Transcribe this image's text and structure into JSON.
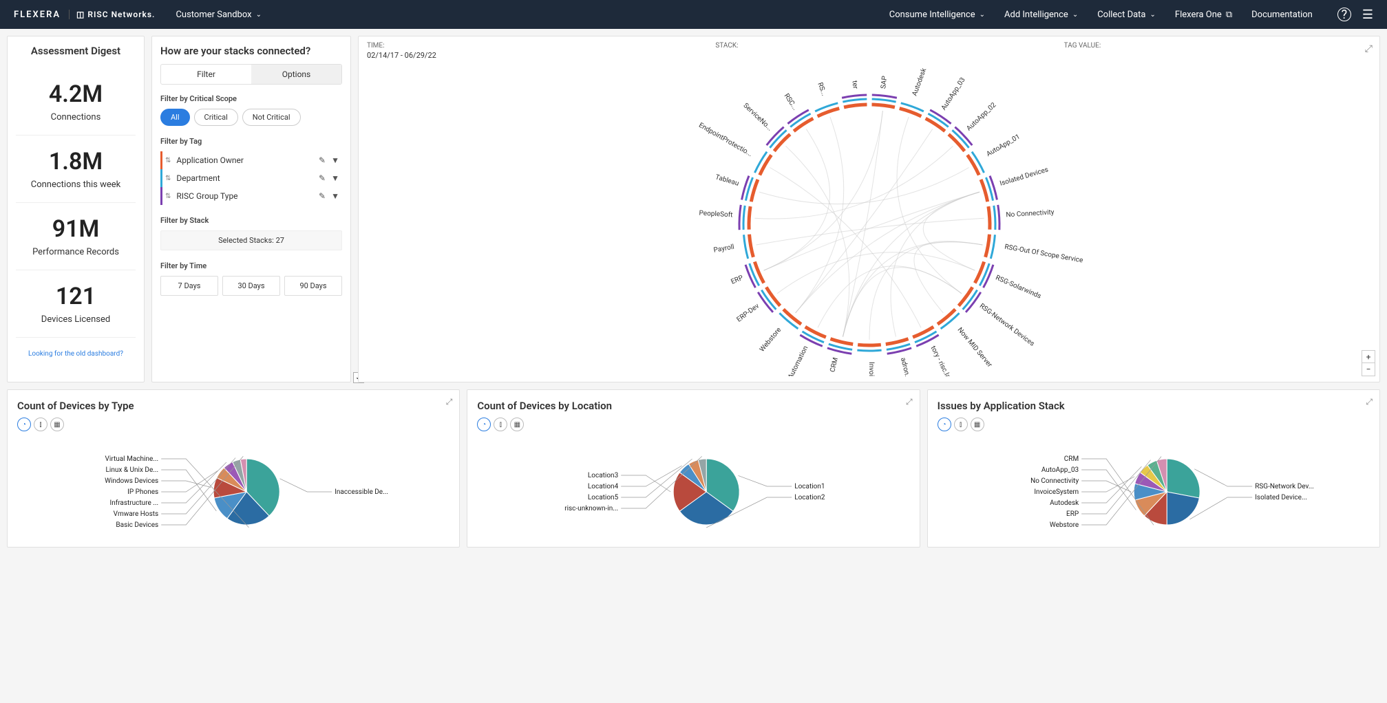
{
  "header": {
    "brand_left": "FLEXERA",
    "brand_right": "RISC Networks.",
    "sandbox": "Customer Sandbox",
    "nav": [
      {
        "label": "Consume Intelligence",
        "dd": true
      },
      {
        "label": "Add Intelligence",
        "dd": true
      },
      {
        "label": "Collect Data",
        "dd": true
      },
      {
        "label": "Flexera One",
        "ext": true
      },
      {
        "label": "Documentation"
      }
    ]
  },
  "digest": {
    "title": "Assessment Digest",
    "metrics": [
      {
        "value": "4.2M",
        "label": "Connections"
      },
      {
        "value": "1.8M",
        "label": "Connections this week"
      },
      {
        "value": "91M",
        "label": "Performance Records"
      },
      {
        "value": "121",
        "label": "Devices Licensed"
      }
    ],
    "old_link": "Looking for the old dashboard?"
  },
  "filters": {
    "title": "How are your stacks connected?",
    "tabs": [
      "Filter",
      "Options"
    ],
    "active_tab": 0,
    "scope": {
      "label": "Filter by Critical Scope",
      "options": [
        "All",
        "Critical",
        "Not Critical"
      ],
      "active": 0
    },
    "tags": {
      "label": "Filter by Tag",
      "items": [
        {
          "label": "Application Owner",
          "color": "#e65c2e"
        },
        {
          "label": "Department",
          "color": "#2fa8d8"
        },
        {
          "label": "RISC Group Type",
          "color": "#7b3fb0"
        }
      ]
    },
    "stack": {
      "label": "Filter by Stack",
      "value": "Selected Stacks: 27"
    },
    "time": {
      "label": "Filter by Time",
      "options": [
        "7 Days",
        "30 Days",
        "90 Days"
      ]
    }
  },
  "chord": {
    "time_label": "TIME:",
    "time_value": "02/14/17 - 06/29/22",
    "stack_label": "STACK:",
    "tag_label": "TAG VALUE:",
    "ring_color": "#e65c2e",
    "inner_ring_a": "#2fa8d8",
    "inner_ring_b": "#7b3fb0",
    "nodes": [
      "SAP",
      "Autodesk",
      "AutoApp_03",
      "AutoApp_02",
      "AutoApp_01",
      "Isolated Devices",
      "No Connectivity",
      "RSG-Out Of Scope Services",
      "RSG-Solarwinds",
      "RSG-Network Devices",
      "Now MID Server",
      "tory - risc.lab",
      "adron.com",
      "InvoiceSys...",
      "CRM",
      "MarketingAutomation",
      "Webstore",
      "ERP-Dev",
      "ERP",
      "Payroll",
      "PeopleSoft",
      "Tableau",
      "EndpointProtectio...",
      "ServiceNo...",
      "RSC...",
      "RS...",
      "ter"
    ],
    "link_color": "#c8c8c8"
  },
  "charts": {
    "devicesByType": {
      "title": "Count of Devices by Type",
      "slices": [
        {
          "label": "Inaccessible De...",
          "value": 38,
          "color": "#3ba39a",
          "side": "r"
        },
        {
          "label": "Virtual Machine...",
          "value": 22,
          "color": "#2b6ca3",
          "side": "l"
        },
        {
          "label": "Linux & Unix De...",
          "value": 12,
          "color": "#4a8fc7",
          "side": "l"
        },
        {
          "label": "Windows Devices",
          "value": 10,
          "color": "#b94a3d",
          "side": "l"
        },
        {
          "label": "IP Phones",
          "value": 6,
          "color": "#d98b5a",
          "side": "l"
        },
        {
          "label": "Infrastructure ...",
          "value": 5,
          "color": "#9b59b6",
          "side": "l"
        },
        {
          "label": "Vmware Hosts",
          "value": 4,
          "color": "#95a5a6",
          "side": "l"
        },
        {
          "label": "Basic Devices",
          "value": 3,
          "color": "#d48fb0",
          "side": "l"
        }
      ]
    },
    "devicesByLocation": {
      "title": "Count of Devices by Location",
      "slices": [
        {
          "label": "Location1",
          "value": 35,
          "color": "#3ba39a",
          "side": "r"
        },
        {
          "label": "Location2",
          "value": 30,
          "color": "#2b6ca3",
          "side": "r"
        },
        {
          "label": "Location3",
          "value": 20,
          "color": "#b94a3d",
          "side": "l"
        },
        {
          "label": "Location4",
          "value": 6,
          "color": "#4a8fc7",
          "side": "l"
        },
        {
          "label": "Location5",
          "value": 5,
          "color": "#d98b5a",
          "side": "l"
        },
        {
          "label": "risc-unknown-in...",
          "value": 4,
          "color": "#95a5a6",
          "side": "l"
        }
      ]
    },
    "issuesByStack": {
      "title": "Issues by Application Stack",
      "slices": [
        {
          "label": "RSG-Network Dev...",
          "value": 28,
          "color": "#3ba39a",
          "side": "r"
        },
        {
          "label": "Isolated Device...",
          "value": 22,
          "color": "#2b6ca3",
          "side": "r"
        },
        {
          "label": "CRM",
          "value": 12,
          "color": "#b94a3d",
          "side": "l"
        },
        {
          "label": "AutoApp_03",
          "value": 9,
          "color": "#d98b5a",
          "side": "l"
        },
        {
          "label": "No Connectivity",
          "value": 8,
          "color": "#4a8fc7",
          "side": "l"
        },
        {
          "label": "InvoiceSystem",
          "value": 6,
          "color": "#9b59b6",
          "side": "l"
        },
        {
          "label": "Autodesk",
          "value": 5,
          "color": "#e6c84a",
          "side": "l"
        },
        {
          "label": "ERP",
          "value": 5,
          "color": "#5ab08f",
          "side": "l"
        },
        {
          "label": "Webstore",
          "value": 5,
          "color": "#d48fb0",
          "side": "l"
        }
      ]
    }
  }
}
